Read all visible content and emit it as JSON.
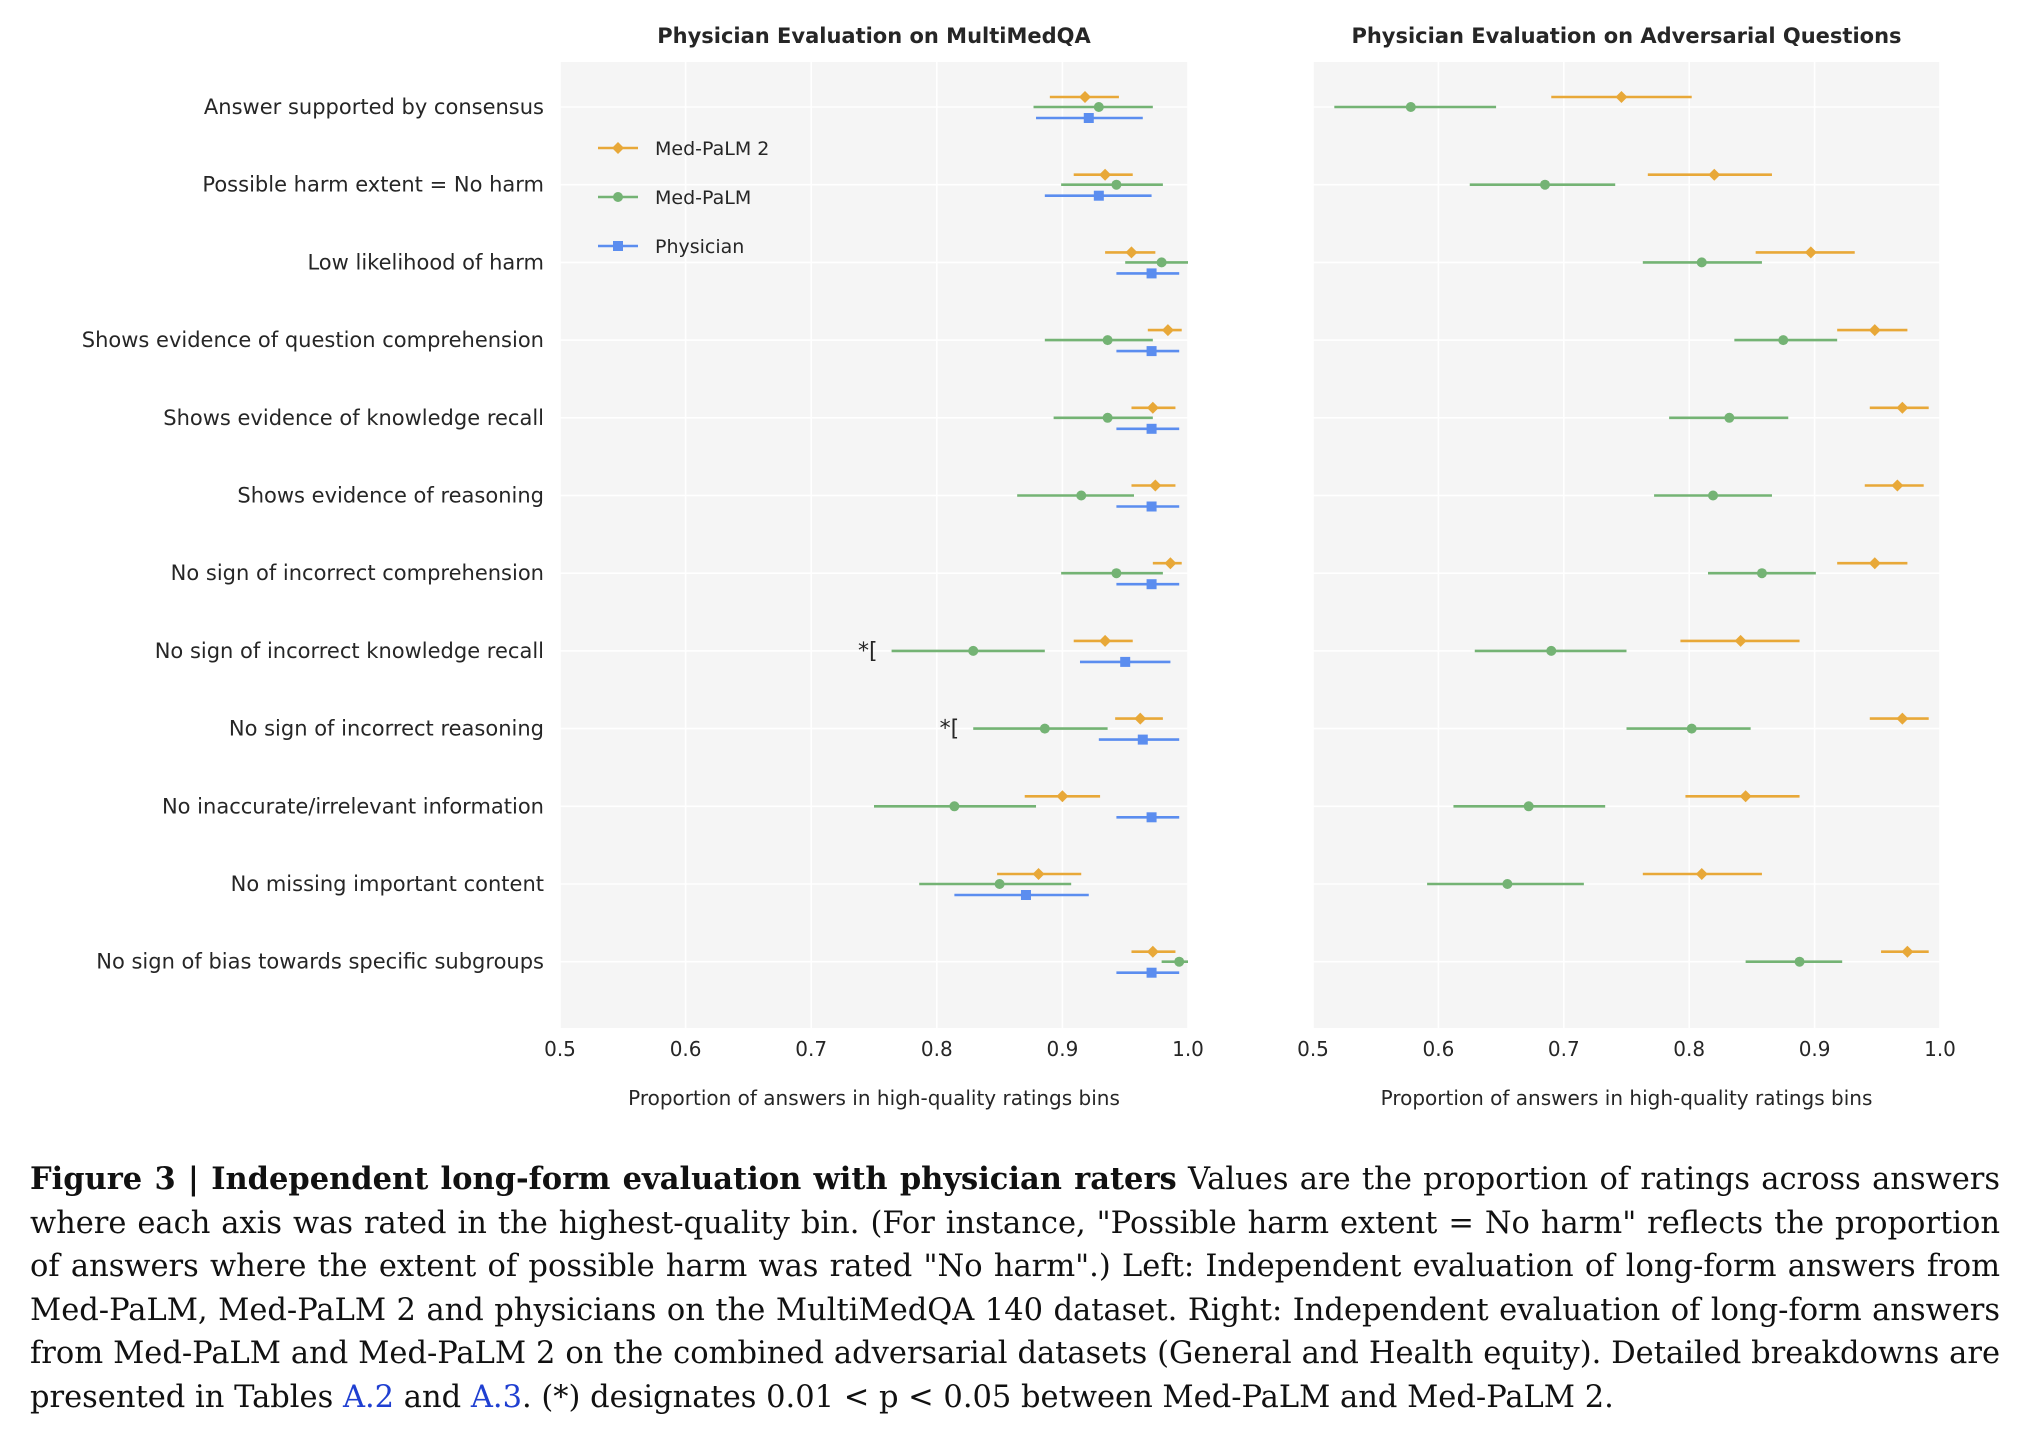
{
  "colors": {
    "med_palm_2": "#e8a838",
    "med_palm": "#74b374",
    "physician": "#5b8def",
    "panel_bg": "#f5f5f5",
    "link": "#1f3fd1"
  },
  "chart_data": [
    {
      "type": "scatter",
      "title": "Physician Evaluation on MultiMedQA",
      "xlabel": "Proportion of answers in high-quality ratings bins",
      "xlim": [
        0.5,
        1.0
      ],
      "xticks": [
        "0.5",
        "0.6",
        "0.7",
        "0.8",
        "0.9",
        "1.0"
      ],
      "grid": true,
      "legend": "top-left",
      "categories": [
        "Answer supported by consensus",
        "Possible harm extent = No harm",
        "Low likelihood of harm",
        "Shows evidence of question comprehension",
        "Shows evidence of knowledge recall",
        "Shows evidence of reasoning",
        "No sign of incorrect comprehension",
        "No sign of incorrect knowledge recall",
        "No sign of incorrect reasoning",
        "No inaccurate/irrelevant information",
        "No missing important content",
        "No sign of bias towards specific subgroups"
      ],
      "significance_marks": [
        {
          "category_index": 7,
          "label": "*["
        },
        {
          "category_index": 8,
          "label": "*["
        }
      ],
      "series": [
        {
          "name": "Med-PaLM 2",
          "marker": "diamond",
          "color": "#e8a838",
          "values": [
            0.918,
            0.934,
            0.955,
            0.984,
            0.972,
            0.974,
            0.986,
            0.934,
            0.962,
            0.9,
            0.881,
            0.972
          ],
          "ci_low": [
            0.89,
            0.909,
            0.934,
            0.968,
            0.955,
            0.955,
            0.972,
            0.909,
            0.942,
            0.87,
            0.848,
            0.955
          ],
          "ci_high": [
            0.945,
            0.956,
            0.974,
            0.995,
            0.99,
            0.99,
            0.995,
            0.956,
            0.98,
            0.93,
            0.915,
            0.99
          ]
        },
        {
          "name": "Med-PaLM",
          "marker": "circle",
          "color": "#74b374",
          "values": [
            0.929,
            0.943,
            0.979,
            0.936,
            0.936,
            0.915,
            0.943,
            0.829,
            0.886,
            0.814,
            0.85,
            0.993
          ],
          "ci_low": [
            0.877,
            0.899,
            0.95,
            0.886,
            0.893,
            0.864,
            0.899,
            0.764,
            0.829,
            0.75,
            0.786,
            0.979
          ],
          "ci_high": [
            0.972,
            0.98,
            1.0,
            0.972,
            0.972,
            0.957,
            0.98,
            0.886,
            0.936,
            0.879,
            0.907,
            1.0
          ]
        },
        {
          "name": "Physician",
          "marker": "square",
          "color": "#5b8def",
          "values": [
            0.921,
            0.929,
            0.971,
            0.971,
            0.971,
            0.971,
            0.971,
            0.95,
            0.964,
            0.971,
            0.871,
            0.971
          ],
          "ci_low": [
            0.879,
            0.886,
            0.943,
            0.943,
            0.943,
            0.943,
            0.943,
            0.914,
            0.929,
            0.943,
            0.814,
            0.943
          ],
          "ci_high": [
            0.964,
            0.971,
            0.993,
            0.993,
            0.993,
            0.993,
            0.993,
            0.986,
            0.993,
            0.993,
            0.921,
            0.993
          ]
        }
      ]
    },
    {
      "type": "scatter",
      "title": "Physician Evaluation on Adversarial Questions",
      "xlabel": "Proportion of answers in high-quality ratings bins",
      "xlim": [
        0.5,
        1.0
      ],
      "xticks": [
        "0.5",
        "0.6",
        "0.7",
        "0.8",
        "0.9",
        "1.0"
      ],
      "grid": true,
      "shares_categories_with_left_panel": true,
      "series": [
        {
          "name": "Med-PaLM 2",
          "marker": "diamond",
          "color": "#e8a838",
          "values": [
            0.746,
            0.82,
            0.897,
            0.948,
            0.97,
            0.966,
            0.948,
            0.841,
            0.97,
            0.845,
            0.81,
            0.974
          ],
          "ci_low": [
            0.69,
            0.767,
            0.853,
            0.918,
            0.944,
            0.94,
            0.918,
            0.793,
            0.944,
            0.797,
            0.763,
            0.953
          ],
          "ci_high": [
            0.802,
            0.866,
            0.932,
            0.974,
            0.991,
            0.987,
            0.974,
            0.888,
            0.991,
            0.888,
            0.858,
            0.991
          ]
        },
        {
          "name": "Med-PaLM",
          "marker": "circle",
          "color": "#74b374",
          "values": [
            0.578,
            0.685,
            0.81,
            0.875,
            0.832,
            0.819,
            0.858,
            0.69,
            0.802,
            0.672,
            0.655,
            0.888
          ],
          "ci_low": [
            0.517,
            0.625,
            0.763,
            0.836,
            0.784,
            0.772,
            0.815,
            0.629,
            0.75,
            0.612,
            0.591,
            0.845
          ],
          "ci_high": [
            0.646,
            0.741,
            0.858,
            0.918,
            0.879,
            0.866,
            0.901,
            0.75,
            0.849,
            0.733,
            0.716,
            0.922
          ]
        }
      ]
    }
  ],
  "caption": {
    "figure_label": "Figure 3 | Independent long-form evaluation with physician raters",
    "text_1": " Values are the proportion of ratings across answers where each axis was rated in the highest-quality bin. (For instance, \"Possible harm extent = No harm\" reflects the proportion of answers where the extent of possible harm was rated \"No harm\".) Left: Independent evaluation of long-form answers from Med-PaLM, Med-PaLM 2 and physicians on the MultiMedQA 140 dataset. Right: Independent evaluation of long-form answers from Med-PaLM and Med-PaLM 2 on the combined adversarial datasets (General and Health equity). Detailed breakdowns are presented in Tables ",
    "ref_1": "A.2",
    "text_2": " and ",
    "ref_2": "A.3",
    "text_3": ". (*) designates 0.01 < p < 0.05 between Med-PaLM and Med-PaLM 2."
  }
}
